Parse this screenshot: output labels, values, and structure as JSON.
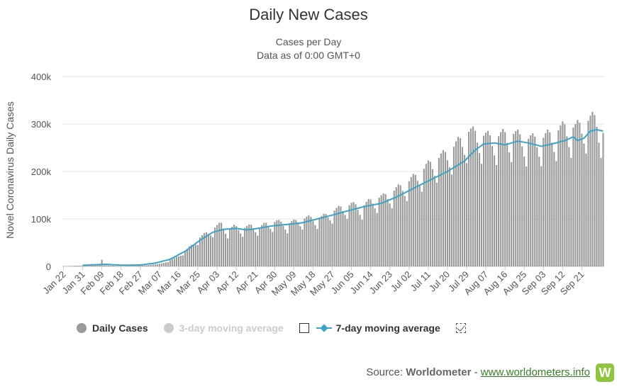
{
  "title": "Daily New Cases",
  "subtitle_line1": "Cases per Day",
  "subtitle_line2": "Data as of 0:00 GMT+0",
  "legend": {
    "daily": "Daily Cases",
    "three_day": "3-day moving average",
    "seven_day": "7-day moving average"
  },
  "source": {
    "prefix": "Source: ",
    "name": "Worldometer",
    "separator": " - ",
    "link": "www.worldometers.info",
    "logo_letter": "W"
  },
  "colors": {
    "bars": "#999999",
    "seven_day_line": "#3aa3c6",
    "grid": "#e6e6e6",
    "logo": "#8fc63d"
  },
  "chart_data": {
    "type": "bar",
    "title": "Daily New Cases",
    "subtitle": "Cases per Day / Data as of 0:00 GMT+0",
    "ylabel": "Novel Coronavirus Daily Cases",
    "xlabel": "",
    "ylim": [
      0,
      400000
    ],
    "yticks": [
      "0",
      "100k",
      "200k",
      "300k",
      "400k"
    ],
    "x_tick_labels": [
      "Jan 22",
      "Jan 31",
      "Feb 09",
      "Feb 18",
      "Feb 27",
      "Mar 07",
      "Mar 16",
      "Mar 25",
      "Apr 03",
      "Apr 12",
      "Apr 21",
      "Apr 30",
      "May 09",
      "May 18",
      "May 27",
      "Jun 05",
      "Jun 14",
      "Jun 23",
      "Jul 02",
      "Jul 11",
      "Jul 20",
      "Jul 29",
      "Aug 07",
      "Aug 16",
      "Aug 25",
      "Sep 03",
      "Sep 12",
      "Sep 21"
    ],
    "start_date": "Jan 22",
    "days": 254,
    "series": [
      {
        "name": "Daily Cases",
        "style": "bar",
        "daily_anchors": [
          [
            0,
            600
          ],
          [
            10,
            2000
          ],
          [
            17,
            3000
          ],
          [
            18,
            14000
          ],
          [
            19,
            2500
          ],
          [
            27,
            700
          ],
          [
            35,
            1500
          ],
          [
            40,
            3000
          ],
          [
            46,
            6000
          ],
          [
            52,
            16000
          ],
          [
            58,
            34000
          ],
          [
            63,
            55000
          ],
          [
            67,
            67000
          ],
          [
            71,
            78000
          ],
          [
            74,
            86000
          ],
          [
            77,
            72000
          ],
          [
            80,
            80000
          ],
          [
            84,
            76000
          ],
          [
            88,
            82000
          ],
          [
            92,
            78000
          ],
          [
            95,
            86000
          ],
          [
            100,
            90000
          ],
          [
            105,
            85000
          ],
          [
            110,
            93000
          ],
          [
            115,
            98000
          ],
          [
            120,
            96000
          ],
          [
            125,
            108000
          ],
          [
            130,
            118000
          ],
          [
            135,
            124000
          ],
          [
            140,
            120000
          ],
          [
            145,
            135000
          ],
          [
            150,
            140000
          ],
          [
            155,
            152000
          ],
          [
            160,
            165000
          ],
          [
            165,
            180000
          ],
          [
            170,
            200000
          ],
          [
            175,
            215000
          ],
          [
            180,
            228000
          ],
          [
            185,
            248000
          ],
          [
            190,
            270000
          ],
          [
            195,
            265000
          ],
          [
            200,
            258000
          ],
          [
            205,
            262000
          ],
          [
            210,
            268000
          ],
          [
            215,
            258000
          ],
          [
            220,
            255000
          ],
          [
            225,
            258000
          ],
          [
            230,
            268000
          ],
          [
            235,
            280000
          ],
          [
            240,
            278000
          ],
          [
            245,
            290000
          ],
          [
            250,
            300000
          ],
          [
            253,
            268000
          ]
        ]
      },
      {
        "name": "3-day moving average",
        "style": "line",
        "visible": false
      },
      {
        "name": "7-day moving average",
        "style": "line",
        "anchors": [
          [
            9,
            2500
          ],
          [
            20,
            4500
          ],
          [
            27,
            2500
          ],
          [
            36,
            3000
          ],
          [
            43,
            7000
          ],
          [
            50,
            15000
          ],
          [
            57,
            32000
          ],
          [
            64,
            55000
          ],
          [
            70,
            72000
          ],
          [
            75,
            78000
          ],
          [
            81,
            80000
          ],
          [
            86,
            77000
          ],
          [
            91,
            80000
          ],
          [
            97,
            85000
          ],
          [
            104,
            88000
          ],
          [
            112,
            92000
          ],
          [
            119,
            100000
          ],
          [
            126,
            108000
          ],
          [
            134,
            118000
          ],
          [
            141,
            126000
          ],
          [
            149,
            133000
          ],
          [
            156,
            146000
          ],
          [
            163,
            162000
          ],
          [
            171,
            180000
          ],
          [
            180,
            200000
          ],
          [
            188,
            222000
          ],
          [
            193,
            245000
          ],
          [
            197,
            258000
          ],
          [
            202,
            260000
          ],
          [
            207,
            256000
          ],
          [
            213,
            264000
          ],
          [
            218,
            260000
          ],
          [
            224,
            253000
          ],
          [
            229,
            258000
          ],
          [
            235,
            265000
          ],
          [
            239,
            273000
          ],
          [
            241,
            265000
          ],
          [
            244,
            270000
          ],
          [
            247,
            285000
          ],
          [
            250,
            288000
          ],
          [
            253,
            285000
          ]
        ]
      }
    ],
    "grid": true,
    "legend_position": "bottom-left"
  }
}
